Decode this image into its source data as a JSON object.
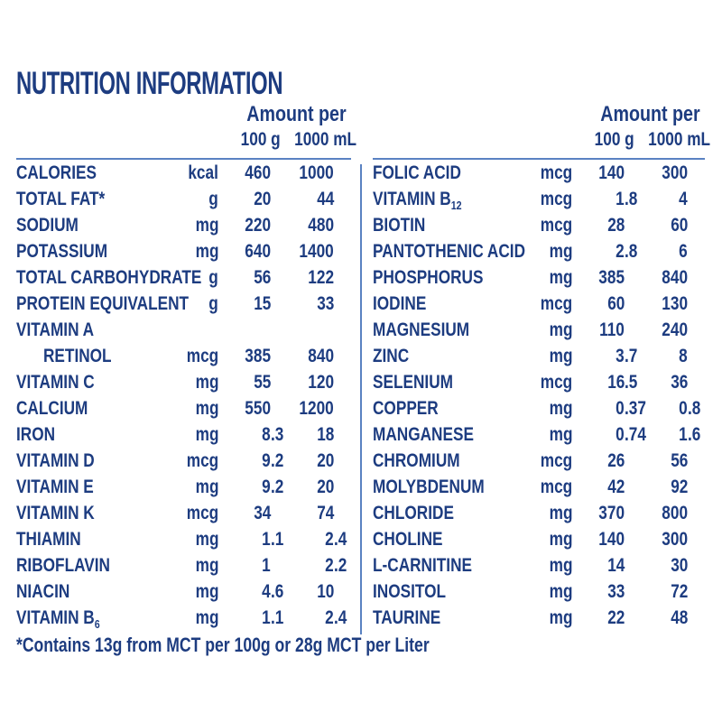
{
  "title": "NUTRITION INFORMATION",
  "footnote": "*Contains 13g from MCT per 100g or 28g MCT per Liter",
  "colors": {
    "text": "#1d3c80",
    "rule": "#5a82c2",
    "background": "#ffffff"
  },
  "tables": [
    {
      "id": "left",
      "header": {
        "amount_per": "Amount per",
        "col_100g": "100 g",
        "col_1000ml": "1000 mL"
      },
      "rows": [
        {
          "label": "CALORIES",
          "unit": "kcal",
          "per_100g": "460",
          "per_1000ml": "1000"
        },
        {
          "label": "TOTAL FAT*",
          "unit": "g",
          "per_100g": "20",
          "per_1000ml": "44"
        },
        {
          "label": "SODIUM",
          "unit": "mg",
          "per_100g": "220",
          "per_1000ml": "480"
        },
        {
          "label": "POTASSIUM",
          "unit": "mg",
          "per_100g": "640",
          "per_1000ml": "1400"
        },
        {
          "label": "TOTAL CARBOHYDRATE",
          "unit": "g",
          "per_100g": "56",
          "per_1000ml": "122"
        },
        {
          "label": "PROTEIN EQUIVALENT",
          "unit": "g",
          "per_100g": "15",
          "per_1000ml": "33"
        },
        {
          "label": "VITAMIN A",
          "unit": "",
          "per_100g": "",
          "per_1000ml": ""
        },
        {
          "label": "RETINOL",
          "indent": true,
          "unit": "mcg",
          "per_100g": "385",
          "per_1000ml": "840"
        },
        {
          "label": "VITAMIN C",
          "unit": "mg",
          "per_100g": "55",
          "per_1000ml": "120"
        },
        {
          "label": "CALCIUM",
          "unit": "mg",
          "per_100g": "550",
          "per_1000ml": "1200"
        },
        {
          "label": "IRON",
          "unit": "mg",
          "per_100g": "8.3",
          "per_1000ml": "18"
        },
        {
          "label": "VITAMIN D",
          "unit": "mcg",
          "per_100g": "9.2",
          "per_1000ml": "20"
        },
        {
          "label": "VITAMIN E",
          "unit": "mg",
          "per_100g": "9.2",
          "per_1000ml": "20"
        },
        {
          "label": "VITAMIN K",
          "unit": "mcg",
          "per_100g": "34",
          "per_1000ml": "74"
        },
        {
          "label": "THIAMIN",
          "unit": "mg",
          "per_100g": "1.1",
          "per_1000ml": "2.4"
        },
        {
          "label": "RIBOFLAVIN",
          "unit": "mg",
          "per_100g": "1",
          "per_1000ml": "2.2"
        },
        {
          "label": "NIACIN",
          "unit": "mg",
          "per_100g": "4.6",
          "per_1000ml": "10"
        },
        {
          "label": "VITAMIN B",
          "sub": "6",
          "unit": "mg",
          "per_100g": "1.1",
          "per_1000ml": "2.4"
        }
      ]
    },
    {
      "id": "right",
      "header": {
        "amount_per": "Amount per",
        "col_100g": "100 g",
        "col_1000ml": "1000 mL"
      },
      "rows": [
        {
          "label": "FOLIC ACID",
          "unit": "mcg",
          "per_100g": "140",
          "per_1000ml": "300"
        },
        {
          "label": "VITAMIN B",
          "sub": "12",
          "unit": "mcg",
          "per_100g": "1.8",
          "per_1000ml": "4"
        },
        {
          "label": "BIOTIN",
          "unit": "mcg",
          "per_100g": "28",
          "per_1000ml": "60"
        },
        {
          "label": "PANTOTHENIC ACID",
          "unit": "mg",
          "per_100g": "2.8",
          "per_1000ml": "6"
        },
        {
          "label": "PHOSPHORUS",
          "unit": "mg",
          "per_100g": "385",
          "per_1000ml": "840"
        },
        {
          "label": "IODINE",
          "unit": "mcg",
          "per_100g": "60",
          "per_1000ml": "130"
        },
        {
          "label": "MAGNESIUM",
          "unit": "mg",
          "per_100g": "110",
          "per_1000ml": "240"
        },
        {
          "label": "ZINC",
          "unit": "mg",
          "per_100g": "3.7",
          "per_1000ml": "8"
        },
        {
          "label": "SELENIUM",
          "unit": "mcg",
          "per_100g": "16.5",
          "per_1000ml": "36"
        },
        {
          "label": "COPPER",
          "unit": "mg",
          "per_100g": "0.37",
          "per_1000ml": "0.8"
        },
        {
          "label": "MANGANESE",
          "unit": "mg",
          "per_100g": "0.74",
          "per_1000ml": "1.6"
        },
        {
          "label": "CHROMIUM",
          "unit": "mcg",
          "per_100g": "26",
          "per_1000ml": "56"
        },
        {
          "label": "MOLYBDENUM",
          "unit": "mcg",
          "per_100g": "42",
          "per_1000ml": "92"
        },
        {
          "label": "CHLORIDE",
          "unit": "mg",
          "per_100g": "370",
          "per_1000ml": "800"
        },
        {
          "label": "CHOLINE",
          "unit": "mg",
          "per_100g": "140",
          "per_1000ml": "300"
        },
        {
          "label": "L-CARNITINE",
          "unit": "mg",
          "per_100g": "14",
          "per_1000ml": "30"
        },
        {
          "label": "INOSITOL",
          "unit": "mg",
          "per_100g": "33",
          "per_1000ml": "72"
        },
        {
          "label": "TAURINE",
          "unit": "mg",
          "per_100g": "22",
          "per_1000ml": "48"
        }
      ]
    }
  ]
}
